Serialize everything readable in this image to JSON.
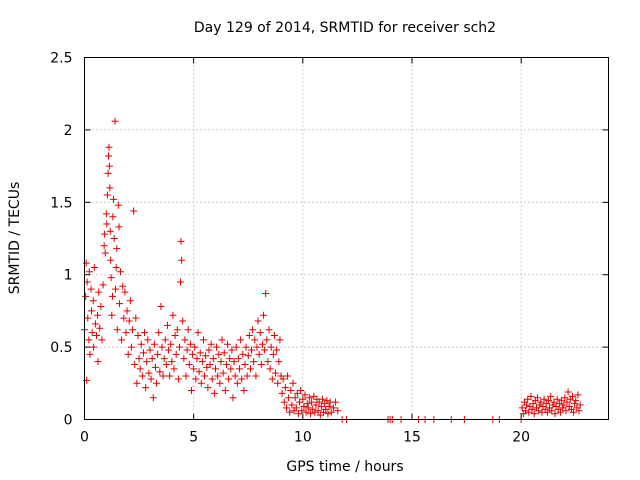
{
  "chart_data": {
    "type": "scatter",
    "title": "Day 129 of 2014, SRMTID for receiver sch2",
    "xlabel": "GPS time / hours",
    "ylabel": "SRMTID / TECUs",
    "xlim": [
      0,
      24
    ],
    "ylim": [
      0,
      2.5
    ],
    "xticks": [
      0,
      5,
      10,
      15,
      20
    ],
    "yticks": [
      0,
      0.5,
      1,
      1.5,
      2,
      2.5
    ],
    "xtick_labels": [
      "0",
      "5",
      "10",
      "15",
      "20"
    ],
    "ytick_labels": [
      "0",
      "0.5",
      "1",
      "1.5",
      "2",
      "2.5"
    ],
    "grid": true,
    "marker": "+",
    "color": "#e00000",
    "series": [
      {
        "name": "sch2",
        "points": [
          [
            0.0,
            0.62
          ],
          [
            0.05,
            0.85
          ],
          [
            0.08,
            1.08
          ],
          [
            0.1,
            0.27
          ],
          [
            0.12,
            0.95
          ],
          [
            0.15,
            0.7
          ],
          [
            0.2,
            0.55
          ],
          [
            0.22,
            1.02
          ],
          [
            0.25,
            0.45
          ],
          [
            0.3,
            0.9
          ],
          [
            0.32,
            0.75
          ],
          [
            0.35,
            0.6
          ],
          [
            0.4,
            0.82
          ],
          [
            0.42,
            0.5
          ],
          [
            0.45,
            1.05
          ],
          [
            0.5,
            0.66
          ],
          [
            0.55,
            0.58
          ],
          [
            0.6,
            0.72
          ],
          [
            0.62,
            0.4
          ],
          [
            0.65,
            0.88
          ],
          [
            0.7,
            0.63
          ],
          [
            0.75,
            0.78
          ],
          [
            0.8,
            0.55
          ],
          [
            0.85,
            0.93
          ],
          [
            0.9,
            1.2
          ],
          [
            0.92,
            1.28
          ],
          [
            0.95,
            1.15
          ],
          [
            1.0,
            1.42
          ],
          [
            1.02,
            1.35
          ],
          [
            1.05,
            1.55
          ],
          [
            1.08,
            1.7
          ],
          [
            1.1,
            1.82
          ],
          [
            1.12,
            1.88
          ],
          [
            1.14,
            1.75
          ],
          [
            1.16,
            1.6
          ],
          [
            1.18,
            1.3
          ],
          [
            1.2,
            1.1
          ],
          [
            1.22,
            0.98
          ],
          [
            1.25,
            0.72
          ],
          [
            1.28,
            0.85
          ],
          [
            1.3,
            1.4
          ],
          [
            1.33,
            1.52
          ],
          [
            1.36,
            1.25
          ],
          [
            1.4,
            2.06
          ],
          [
            1.42,
            0.9
          ],
          [
            1.45,
            1.05
          ],
          [
            1.48,
            1.18
          ],
          [
            1.5,
            0.62
          ],
          [
            1.55,
            1.48
          ],
          [
            1.58,
            1.33
          ],
          [
            1.6,
            0.8
          ],
          [
            1.65,
            1.02
          ],
          [
            1.7,
            0.55
          ],
          [
            1.75,
            0.92
          ],
          [
            1.8,
            0.7
          ],
          [
            1.85,
            0.88
          ],
          [
            1.9,
            0.6
          ],
          [
            1.95,
            0.75
          ],
          [
            2.0,
            0.45
          ],
          [
            2.05,
            0.68
          ],
          [
            2.1,
            0.82
          ],
          [
            2.15,
            0.5
          ],
          [
            2.2,
            0.62
          ],
          [
            2.25,
            1.44
          ],
          [
            2.3,
            0.38
          ],
          [
            2.35,
            0.7
          ],
          [
            2.4,
            0.25
          ],
          [
            2.45,
            0.58
          ],
          [
            2.5,
            0.42
          ],
          [
            2.55,
            0.35
          ],
          [
            2.6,
            0.52
          ],
          [
            2.65,
            0.3
          ],
          [
            2.7,
            0.46
          ],
          [
            2.75,
            0.6
          ],
          [
            2.8,
            0.22
          ],
          [
            2.85,
            0.4
          ],
          [
            2.9,
            0.55
          ],
          [
            2.95,
            0.32
          ],
          [
            3.0,
            0.48
          ],
          [
            3.05,
            0.28
          ],
          [
            3.1,
            0.42
          ],
          [
            3.15,
            0.15
          ],
          [
            3.2,
            0.52
          ],
          [
            3.25,
            0.36
          ],
          [
            3.3,
            0.25
          ],
          [
            3.35,
            0.45
          ],
          [
            3.4,
            0.6
          ],
          [
            3.45,
            0.33
          ],
          [
            3.5,
            0.78
          ],
          [
            3.55,
            0.5
          ],
          [
            3.6,
            0.3
          ],
          [
            3.65,
            0.42
          ],
          [
            3.7,
            0.55
          ],
          [
            3.75,
            0.38
          ],
          [
            3.8,
            0.65
          ],
          [
            3.85,
            0.48
          ],
          [
            3.9,
            0.3
          ],
          [
            3.95,
            0.52
          ],
          [
            4.0,
            0.4
          ],
          [
            4.05,
            0.72
          ],
          [
            4.1,
            0.35
          ],
          [
            4.15,
            0.58
          ],
          [
            4.2,
            0.45
          ],
          [
            4.25,
            0.62
          ],
          [
            4.3,
            0.28
          ],
          [
            4.35,
            0.5
          ],
          [
            4.4,
            0.95
          ],
          [
            4.42,
            1.23
          ],
          [
            4.45,
            1.1
          ],
          [
            4.5,
            0.68
          ],
          [
            4.55,
            0.42
          ],
          [
            4.6,
            0.55
          ],
          [
            4.65,
            0.3
          ],
          [
            4.7,
            0.48
          ],
          [
            4.75,
            0.62
          ],
          [
            4.8,
            0.38
          ],
          [
            4.85,
            0.52
          ],
          [
            4.9,
            0.2
          ],
          [
            4.95,
            0.45
          ],
          [
            5.0,
            0.35
          ],
          [
            5.05,
            0.5
          ],
          [
            5.1,
            0.28
          ],
          [
            5.15,
            0.42
          ],
          [
            5.2,
            0.6
          ],
          [
            5.25,
            0.33
          ],
          [
            5.3,
            0.46
          ],
          [
            5.35,
            0.25
          ],
          [
            5.4,
            0.4
          ],
          [
            5.45,
            0.55
          ],
          [
            5.5,
            0.3
          ],
          [
            5.55,
            0.44
          ],
          [
            5.6,
            0.36
          ],
          [
            5.65,
            0.22
          ],
          [
            5.7,
            0.48
          ],
          [
            5.75,
            0.38
          ],
          [
            5.8,
            0.52
          ],
          [
            5.85,
            0.28
          ],
          [
            5.9,
            0.42
          ],
          [
            5.95,
            0.18
          ],
          [
            6.0,
            0.35
          ],
          [
            6.05,
            0.5
          ],
          [
            6.1,
            0.3
          ],
          [
            6.15,
            0.45
          ],
          [
            6.2,
            0.25
          ],
          [
            6.25,
            0.4
          ],
          [
            6.3,
            0.55
          ],
          [
            6.35,
            0.32
          ],
          [
            6.4,
            0.46
          ],
          [
            6.45,
            0.2
          ],
          [
            6.5,
            0.38
          ],
          [
            6.55,
            0.52
          ],
          [
            6.6,
            0.28
          ],
          [
            6.65,
            0.42
          ],
          [
            6.7,
            0.35
          ],
          [
            6.75,
            0.48
          ],
          [
            6.8,
            0.15
          ],
          [
            6.85,
            0.4
          ],
          [
            6.9,
            0.3
          ],
          [
            6.95,
            0.5
          ],
          [
            7.0,
            0.25
          ],
          [
            7.05,
            0.42
          ],
          [
            7.1,
            0.35
          ],
          [
            7.15,
            0.55
          ],
          [
            7.2,
            0.28
          ],
          [
            7.25,
            0.45
          ],
          [
            7.3,
            0.2
          ],
          [
            7.35,
            0.38
          ],
          [
            7.4,
            0.5
          ],
          [
            7.45,
            0.3
          ],
          [
            7.5,
            0.44
          ],
          [
            7.55,
            0.58
          ],
          [
            7.6,
            0.35
          ],
          [
            7.65,
            0.48
          ],
          [
            7.7,
            0.62
          ],
          [
            7.75,
            0.4
          ],
          [
            7.8,
            0.55
          ],
          [
            7.85,
            0.3
          ],
          [
            7.9,
            0.5
          ],
          [
            7.95,
            0.68
          ],
          [
            8.0,
            0.45
          ],
          [
            8.05,
            0.6
          ],
          [
            8.1,
            0.38
          ],
          [
            8.15,
            0.52
          ],
          [
            8.2,
            0.72
          ],
          [
            8.25,
            0.48
          ],
          [
            8.3,
            0.87
          ],
          [
            8.35,
            0.55
          ],
          [
            8.4,
            0.4
          ],
          [
            8.45,
            0.62
          ],
          [
            8.5,
            0.35
          ],
          [
            8.55,
            0.5
          ],
          [
            8.6,
            0.28
          ],
          [
            8.65,
            0.45
          ],
          [
            8.7,
            0.58
          ],
          [
            8.75,
            0.32
          ],
          [
            8.8,
            0.48
          ],
          [
            8.85,
            0.25
          ],
          [
            8.9,
            0.4
          ],
          [
            8.95,
            0.55
          ],
          [
            9.0,
            0.3
          ],
          [
            9.05,
            0.18
          ],
          [
            9.1,
            0.28
          ],
          [
            9.15,
            0.12
          ],
          [
            9.2,
            0.22
          ],
          [
            9.25,
            0.08
          ],
          [
            9.3,
            0.3
          ],
          [
            9.35,
            0.15
          ],
          [
            9.4,
            0.05
          ],
          [
            9.45,
            0.2
          ],
          [
            9.5,
            0.1
          ],
          [
            9.55,
            0.25
          ],
          [
            9.6,
            0.06
          ],
          [
            9.65,
            0.15
          ],
          [
            9.7,
            0.08
          ],
          [
            9.75,
            0.18
          ],
          [
            9.8,
            0.04
          ],
          [
            9.85,
            0.12
          ],
          [
            9.9,
            0.2
          ],
          [
            9.95,
            0.06
          ],
          [
            10.0,
            0.14
          ],
          [
            10.05,
            0.09
          ],
          [
            10.1,
            0.17
          ],
          [
            10.15,
            0.05
          ],
          [
            10.2,
            0.11
          ],
          [
            10.25,
            0.08
          ],
          [
            10.3,
            0.15
          ],
          [
            10.35,
            0.04
          ],
          [
            10.4,
            0.12
          ],
          [
            10.45,
            0.07
          ],
          [
            10.5,
            0.16
          ],
          [
            10.55,
            0.05
          ],
          [
            10.6,
            0.1
          ],
          [
            10.65,
            0.14
          ],
          [
            10.7,
            0.06
          ],
          [
            10.75,
            0.12
          ],
          [
            10.8,
            0.03
          ],
          [
            10.85,
            0.09
          ],
          [
            10.9,
            0.14
          ],
          [
            10.95,
            0.05
          ],
          [
            11.0,
            0.11
          ],
          [
            11.05,
            0.07
          ],
          [
            11.1,
            0.13
          ],
          [
            11.15,
            0.04
          ],
          [
            11.2,
            0.09
          ],
          [
            11.25,
            0.12
          ],
          [
            11.3,
            0.05
          ],
          [
            11.4,
            0.08
          ],
          [
            11.5,
            0.12
          ],
          [
            11.6,
            0.06
          ],
          [
            11.8,
            0.0
          ],
          [
            12.0,
            0.0
          ],
          [
            13.9,
            0.0
          ],
          [
            14.0,
            0.0
          ],
          [
            14.1,
            0.0
          ],
          [
            14.5,
            0.0
          ],
          [
            15.3,
            0.0
          ],
          [
            15.6,
            0.0
          ],
          [
            16.0,
            0.0
          ],
          [
            16.8,
            0.0
          ],
          [
            17.4,
            0.0
          ],
          [
            18.7,
            0.0
          ],
          [
            19.0,
            0.0
          ],
          [
            20.0,
            0.0
          ],
          [
            20.05,
            0.08
          ],
          [
            20.1,
            0.04
          ],
          [
            20.15,
            0.12
          ],
          [
            20.2,
            0.06
          ],
          [
            20.25,
            0.1
          ],
          [
            20.3,
            0.14
          ],
          [
            20.35,
            0.05
          ],
          [
            20.4,
            0.09
          ],
          [
            20.45,
            0.16
          ],
          [
            20.5,
            0.07
          ],
          [
            20.55,
            0.11
          ],
          [
            20.6,
            0.04
          ],
          [
            20.65,
            0.13
          ],
          [
            20.7,
            0.08
          ],
          [
            20.75,
            0.15
          ],
          [
            20.8,
            0.06
          ],
          [
            20.85,
            0.1
          ],
          [
            20.9,
            0.12
          ],
          [
            20.95,
            0.05
          ],
          [
            21.0,
            0.09
          ],
          [
            21.05,
            0.14
          ],
          [
            21.1,
            0.07
          ],
          [
            21.15,
            0.11
          ],
          [
            21.2,
            0.05
          ],
          [
            21.25,
            0.13
          ],
          [
            21.3,
            0.08
          ],
          [
            21.35,
            0.16
          ],
          [
            21.4,
            0.06
          ],
          [
            21.45,
            0.1
          ],
          [
            21.5,
            0.12
          ],
          [
            21.55,
            0.04
          ],
          [
            21.6,
            0.09
          ],
          [
            21.65,
            0.14
          ],
          [
            21.7,
            0.07
          ],
          [
            21.75,
            0.11
          ],
          [
            21.8,
            0.05
          ],
          [
            21.85,
            0.13
          ],
          [
            21.9,
            0.08
          ],
          [
            21.95,
            0.1
          ],
          [
            22.0,
            0.15
          ],
          [
            22.05,
            0.06
          ],
          [
            22.1,
            0.12
          ],
          [
            22.15,
            0.19
          ],
          [
            22.2,
            0.09
          ],
          [
            22.25,
            0.14
          ],
          [
            22.3,
            0.07
          ],
          [
            22.35,
            0.16
          ],
          [
            22.4,
            0.05
          ],
          [
            22.45,
            0.11
          ],
          [
            22.5,
            0.13
          ],
          [
            22.55,
            0.08
          ],
          [
            22.6,
            0.17
          ],
          [
            22.65,
            0.06
          ],
          [
            22.7,
            0.1
          ]
        ]
      }
    ]
  }
}
